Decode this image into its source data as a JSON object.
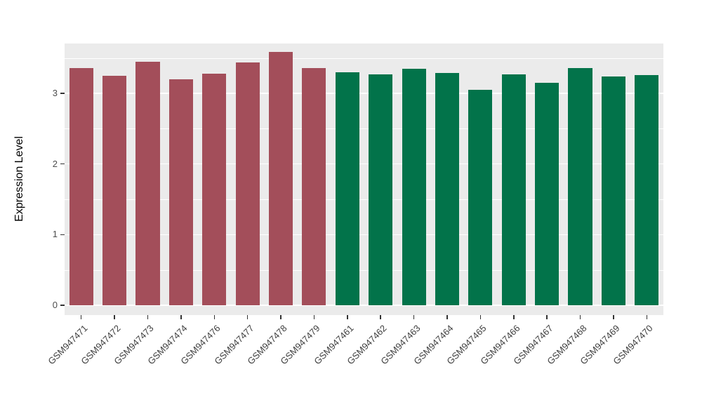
{
  "chart_data": {
    "type": "bar",
    "title": "",
    "xlabel": "",
    "ylabel": "Expression Level",
    "categories": [
      "GSM947471",
      "GSM947472",
      "GSM947473",
      "GSM947474",
      "GSM947476",
      "GSM947477",
      "GSM947478",
      "GSM947479",
      "GSM947461",
      "GSM947462",
      "GSM947463",
      "GSM947464",
      "GSM947465",
      "GSM947466",
      "GSM947467",
      "GSM947468",
      "GSM947469",
      "GSM947470"
    ],
    "values": [
      3.36,
      3.25,
      3.45,
      3.2,
      3.28,
      3.44,
      3.58,
      3.36,
      3.3,
      3.27,
      3.35,
      3.29,
      3.05,
      3.27,
      3.15,
      3.36,
      3.24,
      3.26
    ],
    "colors": [
      "#A34E5A",
      "#A34E5A",
      "#A34E5A",
      "#A34E5A",
      "#A34E5A",
      "#A34E5A",
      "#A34E5A",
      "#A34E5A",
      "#02734A",
      "#02734A",
      "#02734A",
      "#02734A",
      "#02734A",
      "#02734A",
      "#02734A",
      "#02734A",
      "#02734A",
      "#02734A"
    ],
    "groups": [
      {
        "color": "#A34E5A",
        "first_index": 0,
        "last_index": 7
      },
      {
        "color": "#02734A",
        "first_index": 8,
        "last_index": 17
      }
    ],
    "ylim": [
      0,
      3.7
    ],
    "yticks": [
      0,
      1,
      2,
      3
    ],
    "yticks_minor": [
      0.5,
      1.5,
      2.5,
      3.5
    ],
    "x_label_rotation_deg": 45,
    "legend": "none",
    "panel_bg": "#EBEBEB",
    "grid_color": "#FFFFFF",
    "axis_text_color": "#4D4D4D",
    "axis_title_color": "#000000"
  }
}
